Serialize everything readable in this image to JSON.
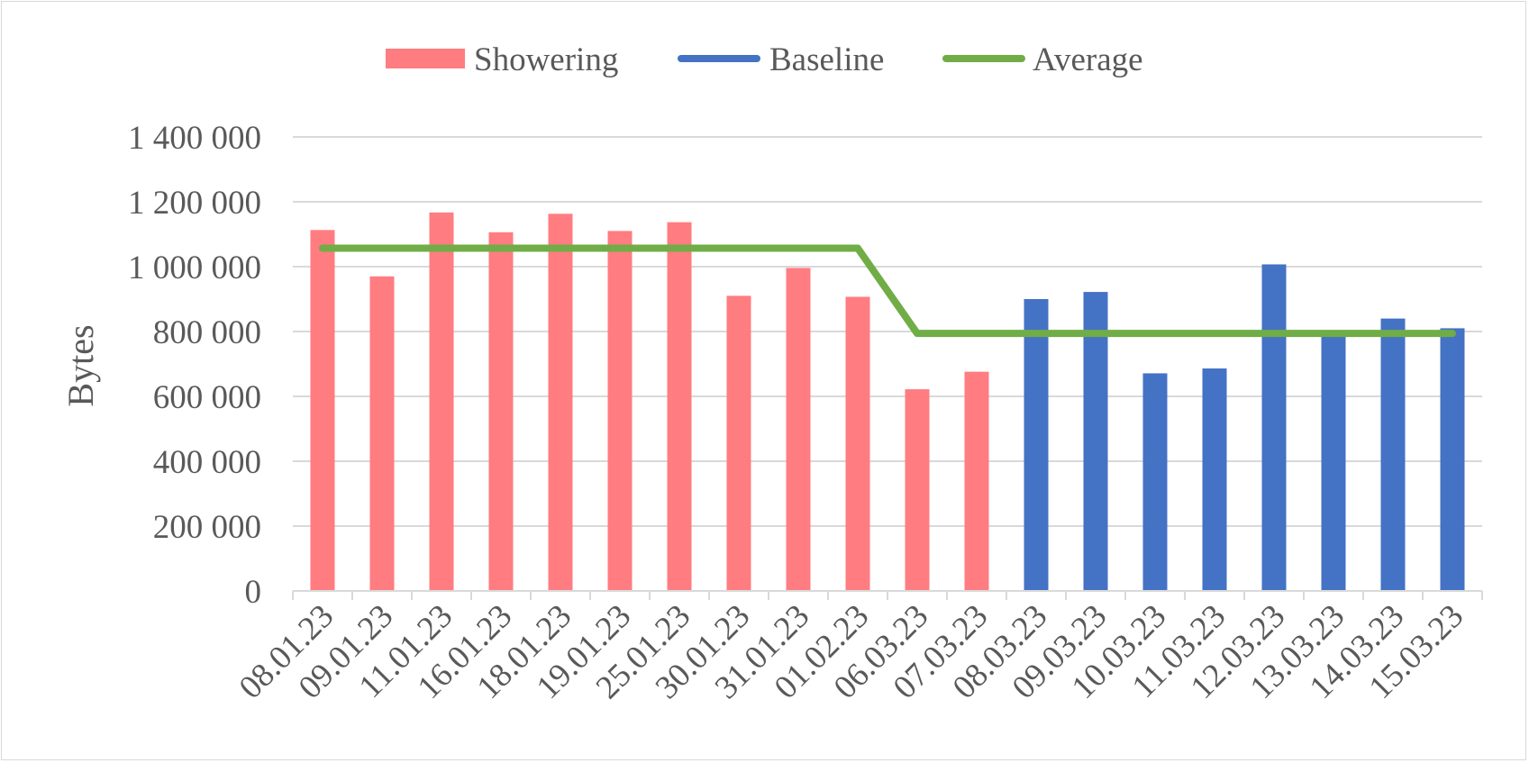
{
  "chart_data": {
    "type": "bar",
    "categories": [
      "08.01.23",
      "09.01.23",
      "11.01.23",
      "16.01.23",
      "18.01.23",
      "19.01.23",
      "25.01.23",
      "30.01.23",
      "31.01.23",
      "01.02.23",
      "06.03.23",
      "07.03.23",
      "08.03.23",
      "09.03.23",
      "10.03.23",
      "11.03.23",
      "12.03.23",
      "13.03.23",
      "14.03.23",
      "15.03.23"
    ],
    "series": [
      {
        "name": "Showering",
        "kind": "bar",
        "color": "#ff7c80",
        "values": [
          1113000,
          970000,
          1167000,
          1106000,
          1163000,
          1110000,
          1137000,
          910000,
          996000,
          907000,
          622000,
          676000,
          null,
          null,
          null,
          null,
          null,
          null,
          null,
          null
        ]
      },
      {
        "name": "Baseline",
        "kind": "bar",
        "color": "#4472c4",
        "values": [
          null,
          null,
          null,
          null,
          null,
          null,
          null,
          null,
          null,
          null,
          null,
          null,
          900000,
          922000,
          671000,
          686000,
          1007000,
          789000,
          840000,
          810000
        ]
      },
      {
        "name": "Average",
        "kind": "line",
        "color": "#70ad47",
        "values": [
          1057000,
          1057000,
          1057000,
          1057000,
          1057000,
          1057000,
          1057000,
          1057000,
          1057000,
          1057000,
          794000,
          794000,
          794000,
          794000,
          794000,
          794000,
          794000,
          794000,
          794000,
          794000
        ]
      }
    ],
    "ylabel": "Bytes",
    "xlabel": "",
    "ylim": [
      0,
      1400000
    ],
    "yticks": [
      0,
      200000,
      400000,
      600000,
      800000,
      1000000,
      1200000,
      1400000
    ],
    "ytick_labels": [
      "0",
      "200 000",
      "400 000",
      "600 000",
      "800 000",
      "1 000 000",
      "1 200 000",
      "1 400 000"
    ],
    "grid": true,
    "legend_position": "top"
  }
}
